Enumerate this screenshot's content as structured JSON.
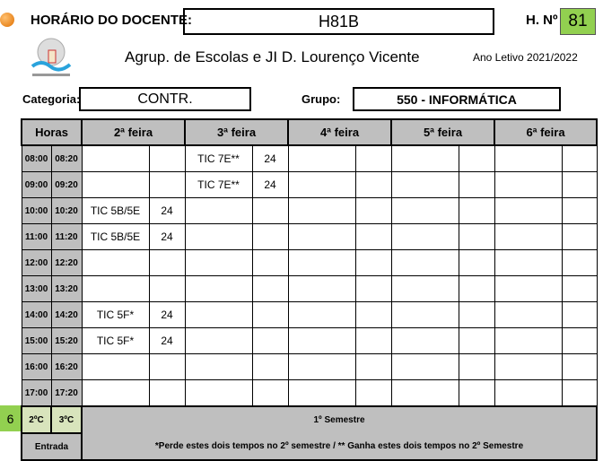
{
  "header": {
    "label": "HORÁRIO DO DOCENTE:",
    "docente": "H81B",
    "hno_label": "H. Nº",
    "hno": "81",
    "school": "Agrup. de Escolas e JI D. Lourenço Vicente",
    "year": "Ano Letivo 2021/2022",
    "categoria_label": "Categoria:",
    "categoria": "CONTR.",
    "grupo_label": "Grupo:",
    "grupo": "550 - INFORMÁTICA"
  },
  "table": {
    "horas": "Horas",
    "days": [
      "2ª feira",
      "3ª feira",
      "4ª feira",
      "5ª feira",
      "6ª feira"
    ],
    "rows": [
      {
        "start": "08:00",
        "end": "08:20",
        "cells": [
          [
            "",
            ""
          ],
          [
            "TIC 7E**",
            "24"
          ],
          [
            "",
            ""
          ],
          [
            "",
            ""
          ],
          [
            "",
            ""
          ]
        ]
      },
      {
        "start": "09:00",
        "end": "09:20",
        "cells": [
          [
            "",
            ""
          ],
          [
            "TIC 7E**",
            "24"
          ],
          [
            "",
            ""
          ],
          [
            "",
            ""
          ],
          [
            "",
            ""
          ]
        ]
      },
      {
        "start": "10:00",
        "end": "10:20",
        "cells": [
          [
            "TIC 5B/5E",
            "24"
          ],
          [
            "",
            ""
          ],
          [
            "",
            ""
          ],
          [
            "",
            ""
          ],
          [
            "",
            ""
          ]
        ]
      },
      {
        "start": "11:00",
        "end": "11:20",
        "cells": [
          [
            "TIC 5B/5E",
            "24"
          ],
          [
            "",
            ""
          ],
          [
            "",
            ""
          ],
          [
            "",
            ""
          ],
          [
            "",
            ""
          ]
        ]
      },
      {
        "start": "12:00",
        "end": "12:20",
        "cells": [
          [
            "",
            ""
          ],
          [
            "",
            ""
          ],
          [
            "",
            ""
          ],
          [
            "",
            ""
          ],
          [
            "",
            ""
          ]
        ]
      },
      {
        "start": "13:00",
        "end": "13:20",
        "cells": [
          [
            "",
            ""
          ],
          [
            "",
            ""
          ],
          [
            "",
            ""
          ],
          [
            "",
            ""
          ],
          [
            "",
            ""
          ]
        ]
      },
      {
        "start": "14:00",
        "end": "14:20",
        "cells": [
          [
            "TIC 5F*",
            "24"
          ],
          [
            "",
            ""
          ],
          [
            "",
            ""
          ],
          [
            "",
            ""
          ],
          [
            "",
            ""
          ]
        ]
      },
      {
        "start": "15:00",
        "end": "15:20",
        "cells": [
          [
            "TIC 5F*",
            "24"
          ],
          [
            "",
            ""
          ],
          [
            "",
            ""
          ],
          [
            "",
            ""
          ],
          [
            "",
            ""
          ]
        ]
      },
      {
        "start": "16:00",
        "end": "16:20",
        "cells": [
          [
            "",
            ""
          ],
          [
            "",
            ""
          ],
          [
            "",
            ""
          ],
          [
            "",
            ""
          ],
          [
            "",
            ""
          ]
        ]
      },
      {
        "start": "17:00",
        "end": "17:20",
        "cells": [
          [
            "",
            ""
          ],
          [
            "",
            ""
          ],
          [
            "",
            ""
          ],
          [
            "",
            ""
          ],
          [
            "",
            ""
          ]
        ]
      }
    ]
  },
  "footer": {
    "side_value": "6",
    "c2": "2ºC",
    "c3": "3ºC",
    "entrada": "Entrada",
    "semester": "1º Semestre",
    "note": "*Perde estes dois tempos no 2º semestre / ** Ganha estes dois tempos no 2º Semestre"
  }
}
